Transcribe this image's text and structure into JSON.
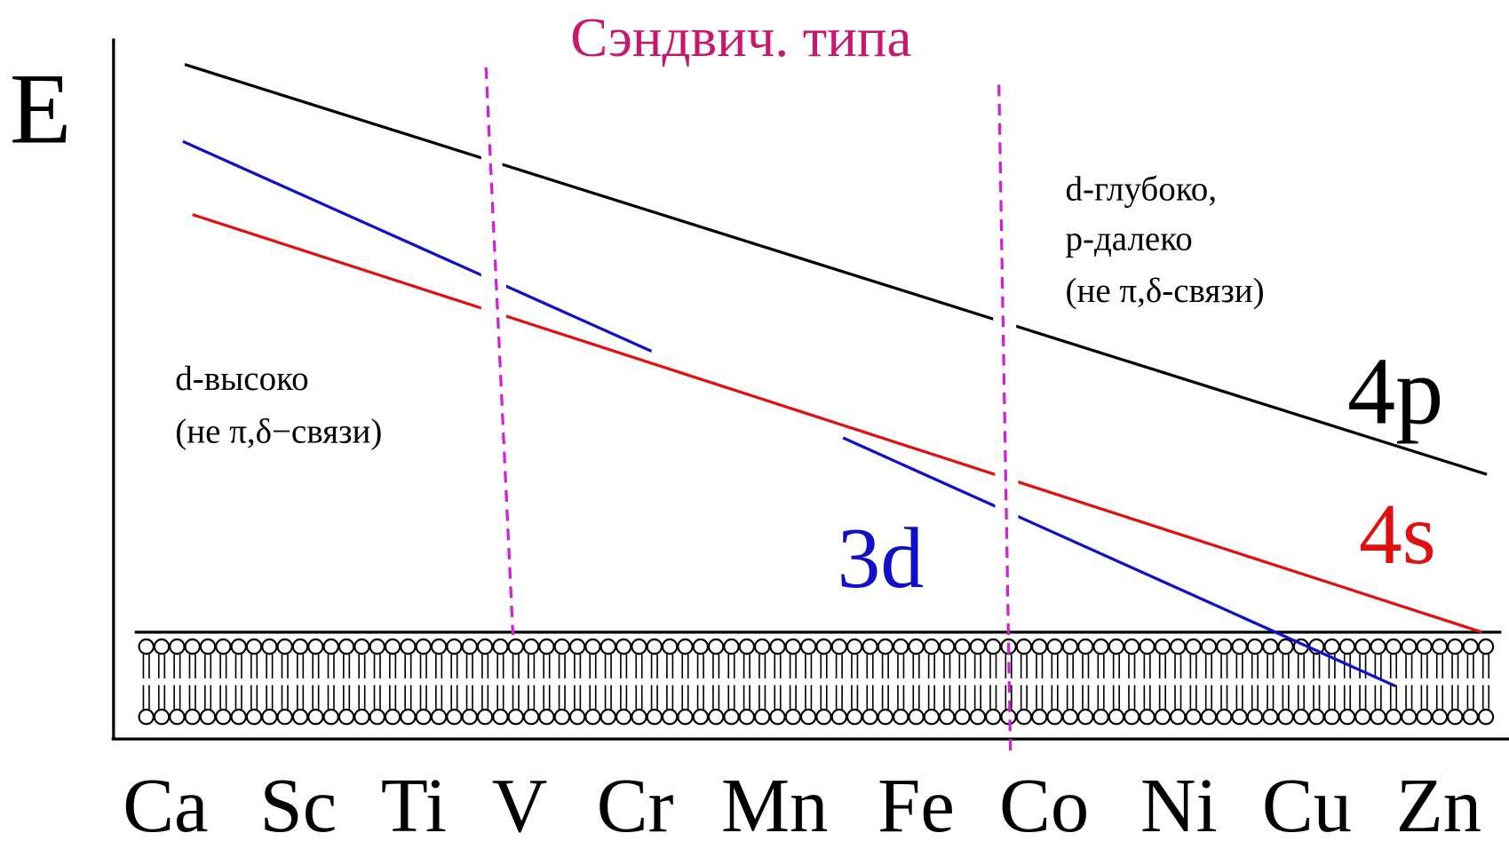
{
  "title": "Сэндвич. типа",
  "axis_label": "E",
  "annotations": {
    "left": [
      "d-высоко",
      "(не π,δ−связи)"
    ],
    "right": [
      "d-глубоко,",
      "p-далеко",
      "(не π,δ-связи)"
    ]
  },
  "curves": [
    "4p",
    "4s",
    "3d"
  ],
  "elements": [
    "Ca",
    "Sc",
    "Ti",
    "V",
    "Cr",
    "Mn",
    "Fe",
    "Co",
    "Ni",
    "Cu",
    "Zn"
  ]
}
